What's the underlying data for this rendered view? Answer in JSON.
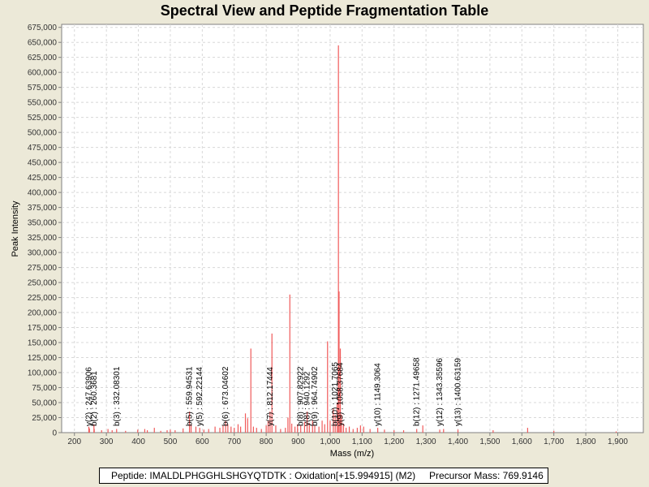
{
  "chart_data": {
    "type": "bar",
    "title": "Spectral View and Peptide Fragmentation Table",
    "xlabel": "Mass (m/z)",
    "ylabel": "Peak Intensity",
    "xlim": [
      160,
      1980
    ],
    "ylim": [
      0,
      680000
    ],
    "xticks": [
      200,
      300,
      400,
      500,
      600,
      700,
      800,
      900,
      1000,
      1100,
      1200,
      1300,
      1400,
      1500,
      1600,
      1700,
      1800,
      1900
    ],
    "xtick_labels": [
      "200",
      "300",
      "400",
      "500",
      "600",
      "700",
      "800",
      "900",
      "1,000",
      "1,100",
      "1,200",
      "1,300",
      "1,400",
      "1,500",
      "1,600",
      "1,700",
      "1,800",
      "1,900"
    ],
    "yticks": [
      0,
      25000,
      50000,
      75000,
      100000,
      125000,
      150000,
      175000,
      200000,
      225000,
      250000,
      275000,
      300000,
      325000,
      350000,
      375000,
      400000,
      425000,
      450000,
      475000,
      500000,
      525000,
      550000,
      575000,
      600000,
      625000,
      650000,
      675000
    ],
    "ytick_labels": [
      "0",
      "25,000",
      "50,000",
      "75,000",
      "100,000",
      "125,000",
      "150,000",
      "175,000",
      "200,000",
      "225,000",
      "250,000",
      "275,000",
      "300,000",
      "325,000",
      "350,000",
      "375,000",
      "400,000",
      "425,000",
      "450,000",
      "475,000",
      "500,000",
      "525,000",
      "550,000",
      "575,000",
      "600,000",
      "625,000",
      "650,000",
      "675,000"
    ],
    "grid": true,
    "peaks": [
      {
        "mz": 245,
        "intensity": 10000
      },
      {
        "mz": 247,
        "intensity": 7000
      },
      {
        "mz": 261,
        "intensity": 14000
      },
      {
        "mz": 262,
        "intensity": 6000
      },
      {
        "mz": 285,
        "intensity": 4000
      },
      {
        "mz": 305,
        "intensity": 6000
      },
      {
        "mz": 318,
        "intensity": 4000
      },
      {
        "mz": 332,
        "intensity": 6000
      },
      {
        "mz": 360,
        "intensity": 3000
      },
      {
        "mz": 398,
        "intensity": 5000
      },
      {
        "mz": 420,
        "intensity": 6000
      },
      {
        "mz": 428,
        "intensity": 4000
      },
      {
        "mz": 450,
        "intensity": 8000
      },
      {
        "mz": 470,
        "intensity": 3000
      },
      {
        "mz": 490,
        "intensity": 4000
      },
      {
        "mz": 500,
        "intensity": 5000
      },
      {
        "mz": 515,
        "intensity": 4000
      },
      {
        "mz": 540,
        "intensity": 7000
      },
      {
        "mz": 560,
        "intensity": 35000
      },
      {
        "mz": 565,
        "intensity": 14000
      },
      {
        "mz": 580,
        "intensity": 10000
      },
      {
        "mz": 592,
        "intensity": 8000
      },
      {
        "mz": 605,
        "intensity": 5000
      },
      {
        "mz": 620,
        "intensity": 6000
      },
      {
        "mz": 640,
        "intensity": 10000
      },
      {
        "mz": 655,
        "intensity": 8000
      },
      {
        "mz": 665,
        "intensity": 12000
      },
      {
        "mz": 673,
        "intensity": 20000
      },
      {
        "mz": 680,
        "intensity": 14000
      },
      {
        "mz": 690,
        "intensity": 10000
      },
      {
        "mz": 700,
        "intensity": 8000
      },
      {
        "mz": 712,
        "intensity": 14000
      },
      {
        "mz": 720,
        "intensity": 10000
      },
      {
        "mz": 735,
        "intensity": 32000
      },
      {
        "mz": 742,
        "intensity": 24000
      },
      {
        "mz": 752,
        "intensity": 140000
      },
      {
        "mz": 760,
        "intensity": 10000
      },
      {
        "mz": 770,
        "intensity": 8000
      },
      {
        "mz": 785,
        "intensity": 6000
      },
      {
        "mz": 800,
        "intensity": 12000
      },
      {
        "mz": 806,
        "intensity": 20000
      },
      {
        "mz": 812,
        "intensity": 35000
      },
      {
        "mz": 818,
        "intensity": 165000
      },
      {
        "mz": 830,
        "intensity": 12000
      },
      {
        "mz": 845,
        "intensity": 6000
      },
      {
        "mz": 860,
        "intensity": 8000
      },
      {
        "mz": 868,
        "intensity": 25000
      },
      {
        "mz": 874,
        "intensity": 230000
      },
      {
        "mz": 880,
        "intensity": 15000
      },
      {
        "mz": 890,
        "intensity": 10000
      },
      {
        "mz": 898,
        "intensity": 14000
      },
      {
        "mz": 908,
        "intensity": 12000
      },
      {
        "mz": 920,
        "intensity": 18000
      },
      {
        "mz": 928,
        "intensity": 35000
      },
      {
        "mz": 935,
        "intensity": 16000
      },
      {
        "mz": 945,
        "intensity": 20000
      },
      {
        "mz": 952,
        "intensity": 12000
      },
      {
        "mz": 965,
        "intensity": 10000
      },
      {
        "mz": 975,
        "intensity": 20000
      },
      {
        "mz": 983,
        "intensity": 14000
      },
      {
        "mz": 992,
        "intensity": 152000
      },
      {
        "mz": 1000,
        "intensity": 20000
      },
      {
        "mz": 1010,
        "intensity": 40000
      },
      {
        "mz": 1016,
        "intensity": 30000
      },
      {
        "mz": 1022,
        "intensity": 50000
      },
      {
        "mz": 1026,
        "intensity": 645000
      },
      {
        "mz": 1028,
        "intensity": 235000
      },
      {
        "mz": 1032,
        "intensity": 140000
      },
      {
        "mz": 1036,
        "intensity": 30000
      },
      {
        "mz": 1042,
        "intensity": 15000
      },
      {
        "mz": 1050,
        "intensity": 8000
      },
      {
        "mz": 1060,
        "intensity": 10000
      },
      {
        "mz": 1072,
        "intensity": 6000
      },
      {
        "mz": 1085,
        "intensity": 8000
      },
      {
        "mz": 1095,
        "intensity": 12000
      },
      {
        "mz": 1105,
        "intensity": 10000
      },
      {
        "mz": 1125,
        "intensity": 6000
      },
      {
        "mz": 1149,
        "intensity": 8000
      },
      {
        "mz": 1170,
        "intensity": 5000
      },
      {
        "mz": 1200,
        "intensity": 4000
      },
      {
        "mz": 1230,
        "intensity": 4000
      },
      {
        "mz": 1271,
        "intensity": 6000
      },
      {
        "mz": 1290,
        "intensity": 12000
      },
      {
        "mz": 1343,
        "intensity": 5000
      },
      {
        "mz": 1355,
        "intensity": 6000
      },
      {
        "mz": 1400,
        "intensity": 5000
      },
      {
        "mz": 1510,
        "intensity": 4000
      },
      {
        "mz": 1618,
        "intensity": 8000
      },
      {
        "mz": 1700,
        "intensity": 3000
      },
      {
        "mz": 1895,
        "intensity": 2000
      }
    ],
    "annotations": [
      {
        "mz": 245,
        "label": "y(2) : 247.63906"
      },
      {
        "mz": 261,
        "label": "b(2) : 260.3681"
      },
      {
        "mz": 332,
        "label": "b(3) : 332.08301"
      },
      {
        "mz": 560,
        "label": "b(5) : 559.94531"
      },
      {
        "mz": 592,
        "label": "y(5) : 592.22144"
      },
      {
        "mz": 673,
        "label": "b(6) : 673.04602"
      },
      {
        "mz": 812,
        "label": "y(7) : 812.17444"
      },
      {
        "mz": 908,
        "label": "b(8) : 907.82922"
      },
      {
        "mz": 928,
        "label": "y(8) : 940.1292"
      },
      {
        "mz": 952,
        "label": "b(9) : 964.74902"
      },
      {
        "mz": 1016,
        "label": "b(10) : 1021.7065"
      },
      {
        "mz": 1032,
        "label": "y(9) : 1058.37684"
      },
      {
        "mz": 1149,
        "label": "y(10) : 1149.3064"
      },
      {
        "mz": 1271,
        "label": "b(12) : 1271.49658"
      },
      {
        "mz": 1343,
        "label": "y(12) : 1343.35596"
      },
      {
        "mz": 1400,
        "label": "y(13) : 1400.63159"
      }
    ]
  },
  "footer": {
    "peptide": "Peptide: IMALDLPHGGHLSHGYQTDTK : Oxidation[+15.994915] (M2)",
    "precursor": "Precursor Mass: 769.9146"
  }
}
